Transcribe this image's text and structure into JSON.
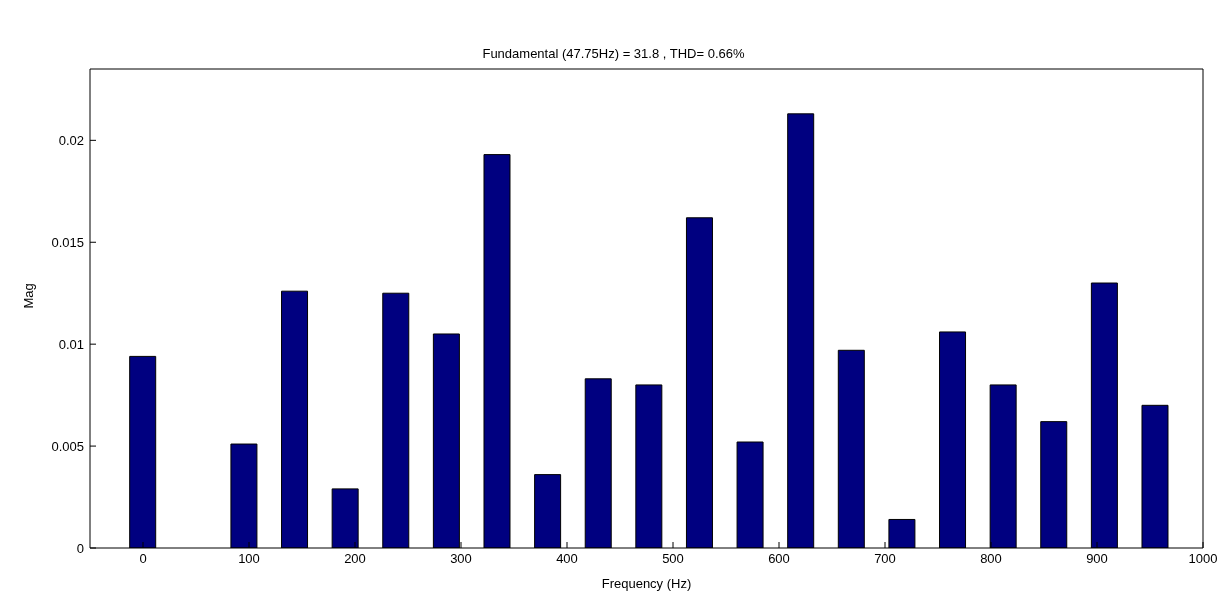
{
  "chart_data": {
    "type": "bar",
    "title": "Fundamental (47.75Hz) = 31.8 , THD= 0.66%",
    "xlabel": "Frequency (Hz)",
    "ylabel": "Mag",
    "x": [
      0,
      47.75,
      95.5,
      143.25,
      191,
      238.75,
      286.5,
      334.25,
      382,
      429.75,
      477.5,
      525.25,
      573,
      620.75,
      668.5,
      716.25,
      764,
      811.75,
      859.5,
      907.25,
      955
    ],
    "values": [
      0.0094,
      null,
      0.0051,
      0.0126,
      0.0029,
      0.0125,
      0.0105,
      0.0193,
      0.0036,
      0.0083,
      0.008,
      0.0162,
      0.0052,
      0.0213,
      0.0097,
      0.0014,
      0.0106,
      0.008,
      0.0062,
      0.013,
      0.007
    ],
    "color": "#000080",
    "xlim": [
      -50,
      1000
    ],
    "xticks": [
      0,
      100,
      200,
      300,
      400,
      500,
      600,
      700,
      800,
      900,
      1000
    ],
    "ylim": [
      0,
      0.0235
    ],
    "yticks": [
      0,
      0.005,
      0.01,
      0.015,
      0.02
    ]
  }
}
